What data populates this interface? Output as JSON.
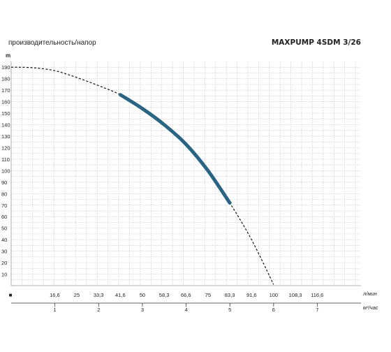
{
  "chart_data": {
    "type": "line",
    "title": "MAXPUMP 4SDM 3/26",
    "subtitle": "производительность/напор",
    "ylabel": "m",
    "xlabel_lmin": "л/мин",
    "xlabel_m3h": "м³/час",
    "corner_marker": "■",
    "ylim": [
      0,
      195
    ],
    "y_ticks": [
      "10",
      "20",
      "30",
      "40",
      "50",
      "60",
      "70",
      "80",
      "90",
      "100",
      "110",
      "120",
      "130",
      "140",
      "150",
      "160",
      "170",
      "180",
      "190"
    ],
    "xlim_lmin": [
      0,
      133.3
    ],
    "x_ticks_lmin": [
      "16,6",
      "25",
      "33,3",
      "41,6",
      "50",
      "58,3",
      "66,6",
      "75",
      "83,3",
      "91,6",
      "100",
      "108,3",
      "116,6"
    ],
    "x_ticks_m3h": [
      "1",
      "2",
      "3",
      "4",
      "5",
      "6",
      "7"
    ],
    "series": [
      {
        "style": "dashed",
        "x": [
          0,
          8,
          16.6,
          25,
          33.3,
          41.6,
          50,
          58.3,
          66.6,
          75,
          83.3,
          91.6,
          100
        ],
        "y": [
          190,
          189.6,
          187,
          181,
          174,
          166,
          154,
          140,
          123,
          100,
          72,
          40,
          1
        ]
      },
      {
        "style": "solid",
        "color": "#2a6485",
        "x": [
          41.6,
          50,
          58.3,
          66.6,
          75,
          83.3
        ],
        "y": [
          166,
          154,
          140,
          123,
          100,
          72
        ]
      }
    ]
  }
}
